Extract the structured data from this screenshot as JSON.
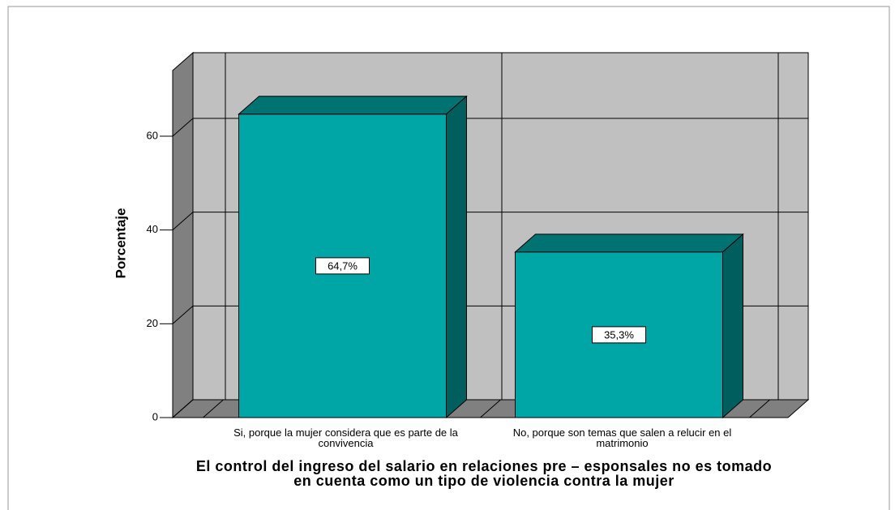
{
  "chart_data": {
    "type": "bar3d",
    "categories": [
      "Si, porque la mujer considera que es parte de la convivencia",
      "No, porque son temas que salen a relucir en el matrimonio"
    ],
    "values": [
      64.7,
      35.3
    ],
    "value_labels": [
      "64,7%",
      "35,3%"
    ],
    "y_label": "Porcentaje",
    "x_label": "El control del ingreso del salario en relaciones pre – esponsales no es tomado en cuenta como un tipo de violencia contra la mujer",
    "color": "#00a5a5",
    "ylim": [
      0,
      74
    ],
    "yticks": [
      0,
      20,
      40,
      60
    ],
    "grid": true
  }
}
